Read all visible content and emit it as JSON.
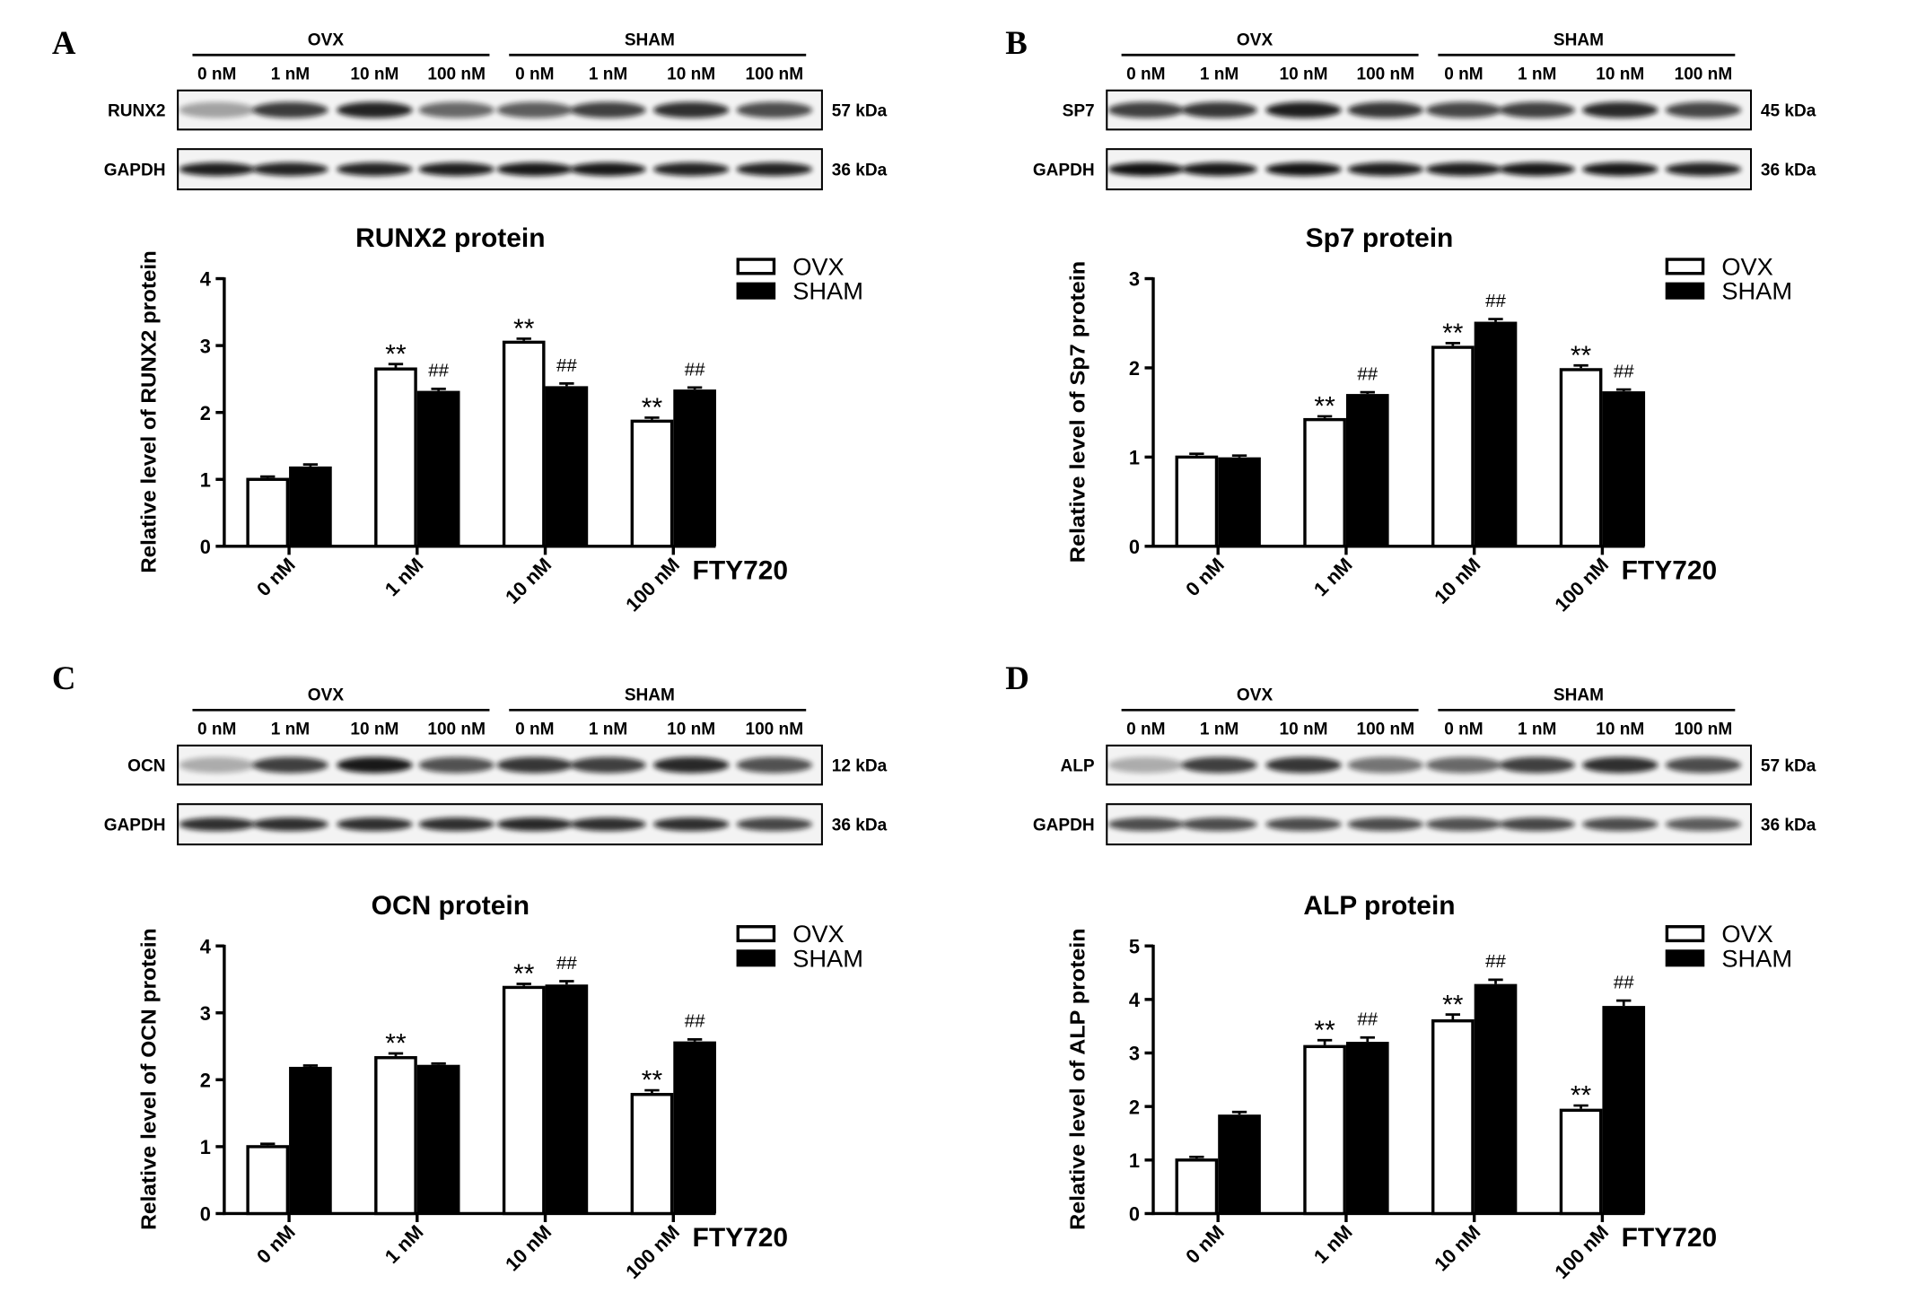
{
  "panel_labels": [
    "A",
    "B",
    "C",
    "D"
  ],
  "blots": [
    {
      "groups": [
        "OVX",
        "SHAM"
      ],
      "lanes": [
        "0 nM",
        "1 nM",
        "10 nM",
        "100 nM",
        "0 nM",
        "1 nM",
        "10 nM",
        "100 nM"
      ],
      "rows": [
        {
          "protein": "RUNX2",
          "size": "57 kDa",
          "band_intensity": [
            0.35,
            0.8,
            0.9,
            0.6,
            0.65,
            0.78,
            0.85,
            0.72
          ]
        },
        {
          "protein": "GAPDH",
          "size": "36 kDa",
          "band_intensity": [
            0.92,
            0.9,
            0.9,
            0.92,
            0.95,
            0.95,
            0.9,
            0.9
          ]
        }
      ]
    },
    {
      "groups": [
        "OVX",
        "SHAM"
      ],
      "lanes": [
        "0 nM",
        "1 nM",
        "10 nM",
        "100 nM",
        "0 nM",
        "1 nM",
        "10 nM",
        "100 nM"
      ],
      "rows": [
        {
          "protein": "SP7",
          "size": "45 kDa",
          "band_intensity": [
            0.78,
            0.82,
            0.92,
            0.82,
            0.75,
            0.78,
            0.88,
            0.75
          ]
        },
        {
          "protein": "GAPDH",
          "size": "36 kDa",
          "band_intensity": [
            0.98,
            0.95,
            0.97,
            0.92,
            0.92,
            0.95,
            0.95,
            0.9
          ]
        }
      ]
    },
    {
      "groups": [
        "OVX",
        "SHAM"
      ],
      "lanes": [
        "0 nM",
        "1 nM",
        "10 nM",
        "100 nM",
        "0 nM",
        "1 nM",
        "10 nM",
        "100 nM"
      ],
      "rows": [
        {
          "protein": "OCN",
          "size": "12 kDa",
          "band_intensity": [
            0.3,
            0.78,
            0.95,
            0.7,
            0.82,
            0.78,
            0.88,
            0.7
          ]
        },
        {
          "protein": "GAPDH",
          "size": "36 kDa",
          "band_intensity": [
            0.85,
            0.85,
            0.85,
            0.85,
            0.88,
            0.85,
            0.85,
            0.75
          ]
        }
      ]
    },
    {
      "groups": [
        "OVX",
        "SHAM"
      ],
      "lanes": [
        "0 nM",
        "1 nM",
        "10 nM",
        "100 nM",
        "0 nM",
        "1 nM",
        "10 nM",
        "100 nM"
      ],
      "rows": [
        {
          "protein": "ALP",
          "size": "57 kDa",
          "band_intensity": [
            0.3,
            0.78,
            0.82,
            0.55,
            0.6,
            0.78,
            0.85,
            0.72
          ]
        },
        {
          "protein": "GAPDH",
          "size": "36 kDa",
          "band_intensity": [
            0.72,
            0.72,
            0.72,
            0.72,
            0.7,
            0.75,
            0.72,
            0.65
          ]
        }
      ]
    }
  ],
  "chart_data": [
    {
      "type": "bar",
      "title": "RUNX2 protein",
      "ylabel": "Relative level of RUNX2 protein",
      "xlabel": "FTY720",
      "categories": [
        "0 nM",
        "1 nM",
        "10 nM",
        "100 nM"
      ],
      "ylim": [
        0,
        4
      ],
      "yticks": [
        0,
        1,
        2,
        3,
        4
      ],
      "grid": false,
      "legend": "top-right",
      "series": [
        {
          "name": "OVX",
          "fill": "#ffffff",
          "values": [
            1.0,
            2.65,
            3.05,
            1.87
          ],
          "errors": [
            0.02,
            0.05,
            0.03,
            0.03
          ],
          "marks": [
            "",
            "**",
            "**",
            "**"
          ]
        },
        {
          "name": "SHAM",
          "fill": "#000000",
          "values": [
            1.17,
            2.3,
            2.37,
            2.32
          ],
          "errors": [
            0.03,
            0.03,
            0.04,
            0.03
          ],
          "marks": [
            "",
            "##",
            "##",
            "##"
          ]
        }
      ]
    },
    {
      "type": "bar",
      "title": "Sp7 protein",
      "ylabel": "Relative level of Sp7 protein",
      "xlabel": "FTY720",
      "categories": [
        "0 nM",
        "1 nM",
        "10 nM",
        "100 nM"
      ],
      "ylim": [
        0,
        3
      ],
      "yticks": [
        0,
        1,
        2,
        3
      ],
      "grid": false,
      "legend": "top-right",
      "series": [
        {
          "name": "OVX",
          "fill": "#ffffff",
          "values": [
            1.0,
            1.42,
            2.23,
            1.98
          ],
          "errors": [
            0.02,
            0.02,
            0.03,
            0.03
          ],
          "marks": [
            "",
            "**",
            "**",
            "**"
          ]
        },
        {
          "name": "SHAM",
          "fill": "#000000",
          "values": [
            0.98,
            1.69,
            2.5,
            1.72
          ],
          "errors": [
            0.02,
            0.02,
            0.03,
            0.02
          ],
          "marks": [
            "",
            "##",
            "##",
            "##"
          ]
        }
      ]
    },
    {
      "type": "bar",
      "title": "OCN protein",
      "ylabel": "Relative level of OCN protein",
      "xlabel": "FTY720",
      "categories": [
        "0 nM",
        "1 nM",
        "10 nM",
        "100 nM"
      ],
      "ylim": [
        0,
        4
      ],
      "yticks": [
        0,
        1,
        2,
        3,
        4
      ],
      "grid": false,
      "legend": "top-right",
      "series": [
        {
          "name": "OVX",
          "fill": "#ffffff",
          "values": [
            1.0,
            2.33,
            3.38,
            1.78
          ],
          "errors": [
            0.02,
            0.04,
            0.03,
            0.04
          ],
          "marks": [
            "",
            "**",
            "**",
            "**"
          ]
        },
        {
          "name": "SHAM",
          "fill": "#000000",
          "values": [
            2.17,
            2.2,
            3.4,
            2.55
          ],
          "errors": [
            0.02,
            0.02,
            0.05,
            0.03
          ],
          "marks": [
            "",
            "",
            "##",
            "##"
          ]
        }
      ]
    },
    {
      "type": "bar",
      "title": "ALP protein",
      "ylabel": "Relative level of ALP protein",
      "xlabel": "FTY720",
      "categories": [
        "0 nM",
        "1 nM",
        "10 nM",
        "100 nM"
      ],
      "ylim": [
        0,
        5
      ],
      "yticks": [
        0,
        1,
        2,
        3,
        4,
        5
      ],
      "grid": false,
      "legend": "top-right",
      "series": [
        {
          "name": "OVX",
          "fill": "#ffffff",
          "values": [
            1.0,
            3.12,
            3.6,
            1.93
          ],
          "errors": [
            0.03,
            0.09,
            0.09,
            0.06
          ],
          "marks": [
            "",
            "**",
            "**",
            "**"
          ]
        },
        {
          "name": "SHAM",
          "fill": "#000000",
          "values": [
            1.82,
            3.18,
            4.26,
            3.85
          ],
          "errors": [
            0.05,
            0.08,
            0.08,
            0.1
          ],
          "marks": [
            "",
            "##",
            "##",
            "##"
          ]
        }
      ]
    }
  ]
}
